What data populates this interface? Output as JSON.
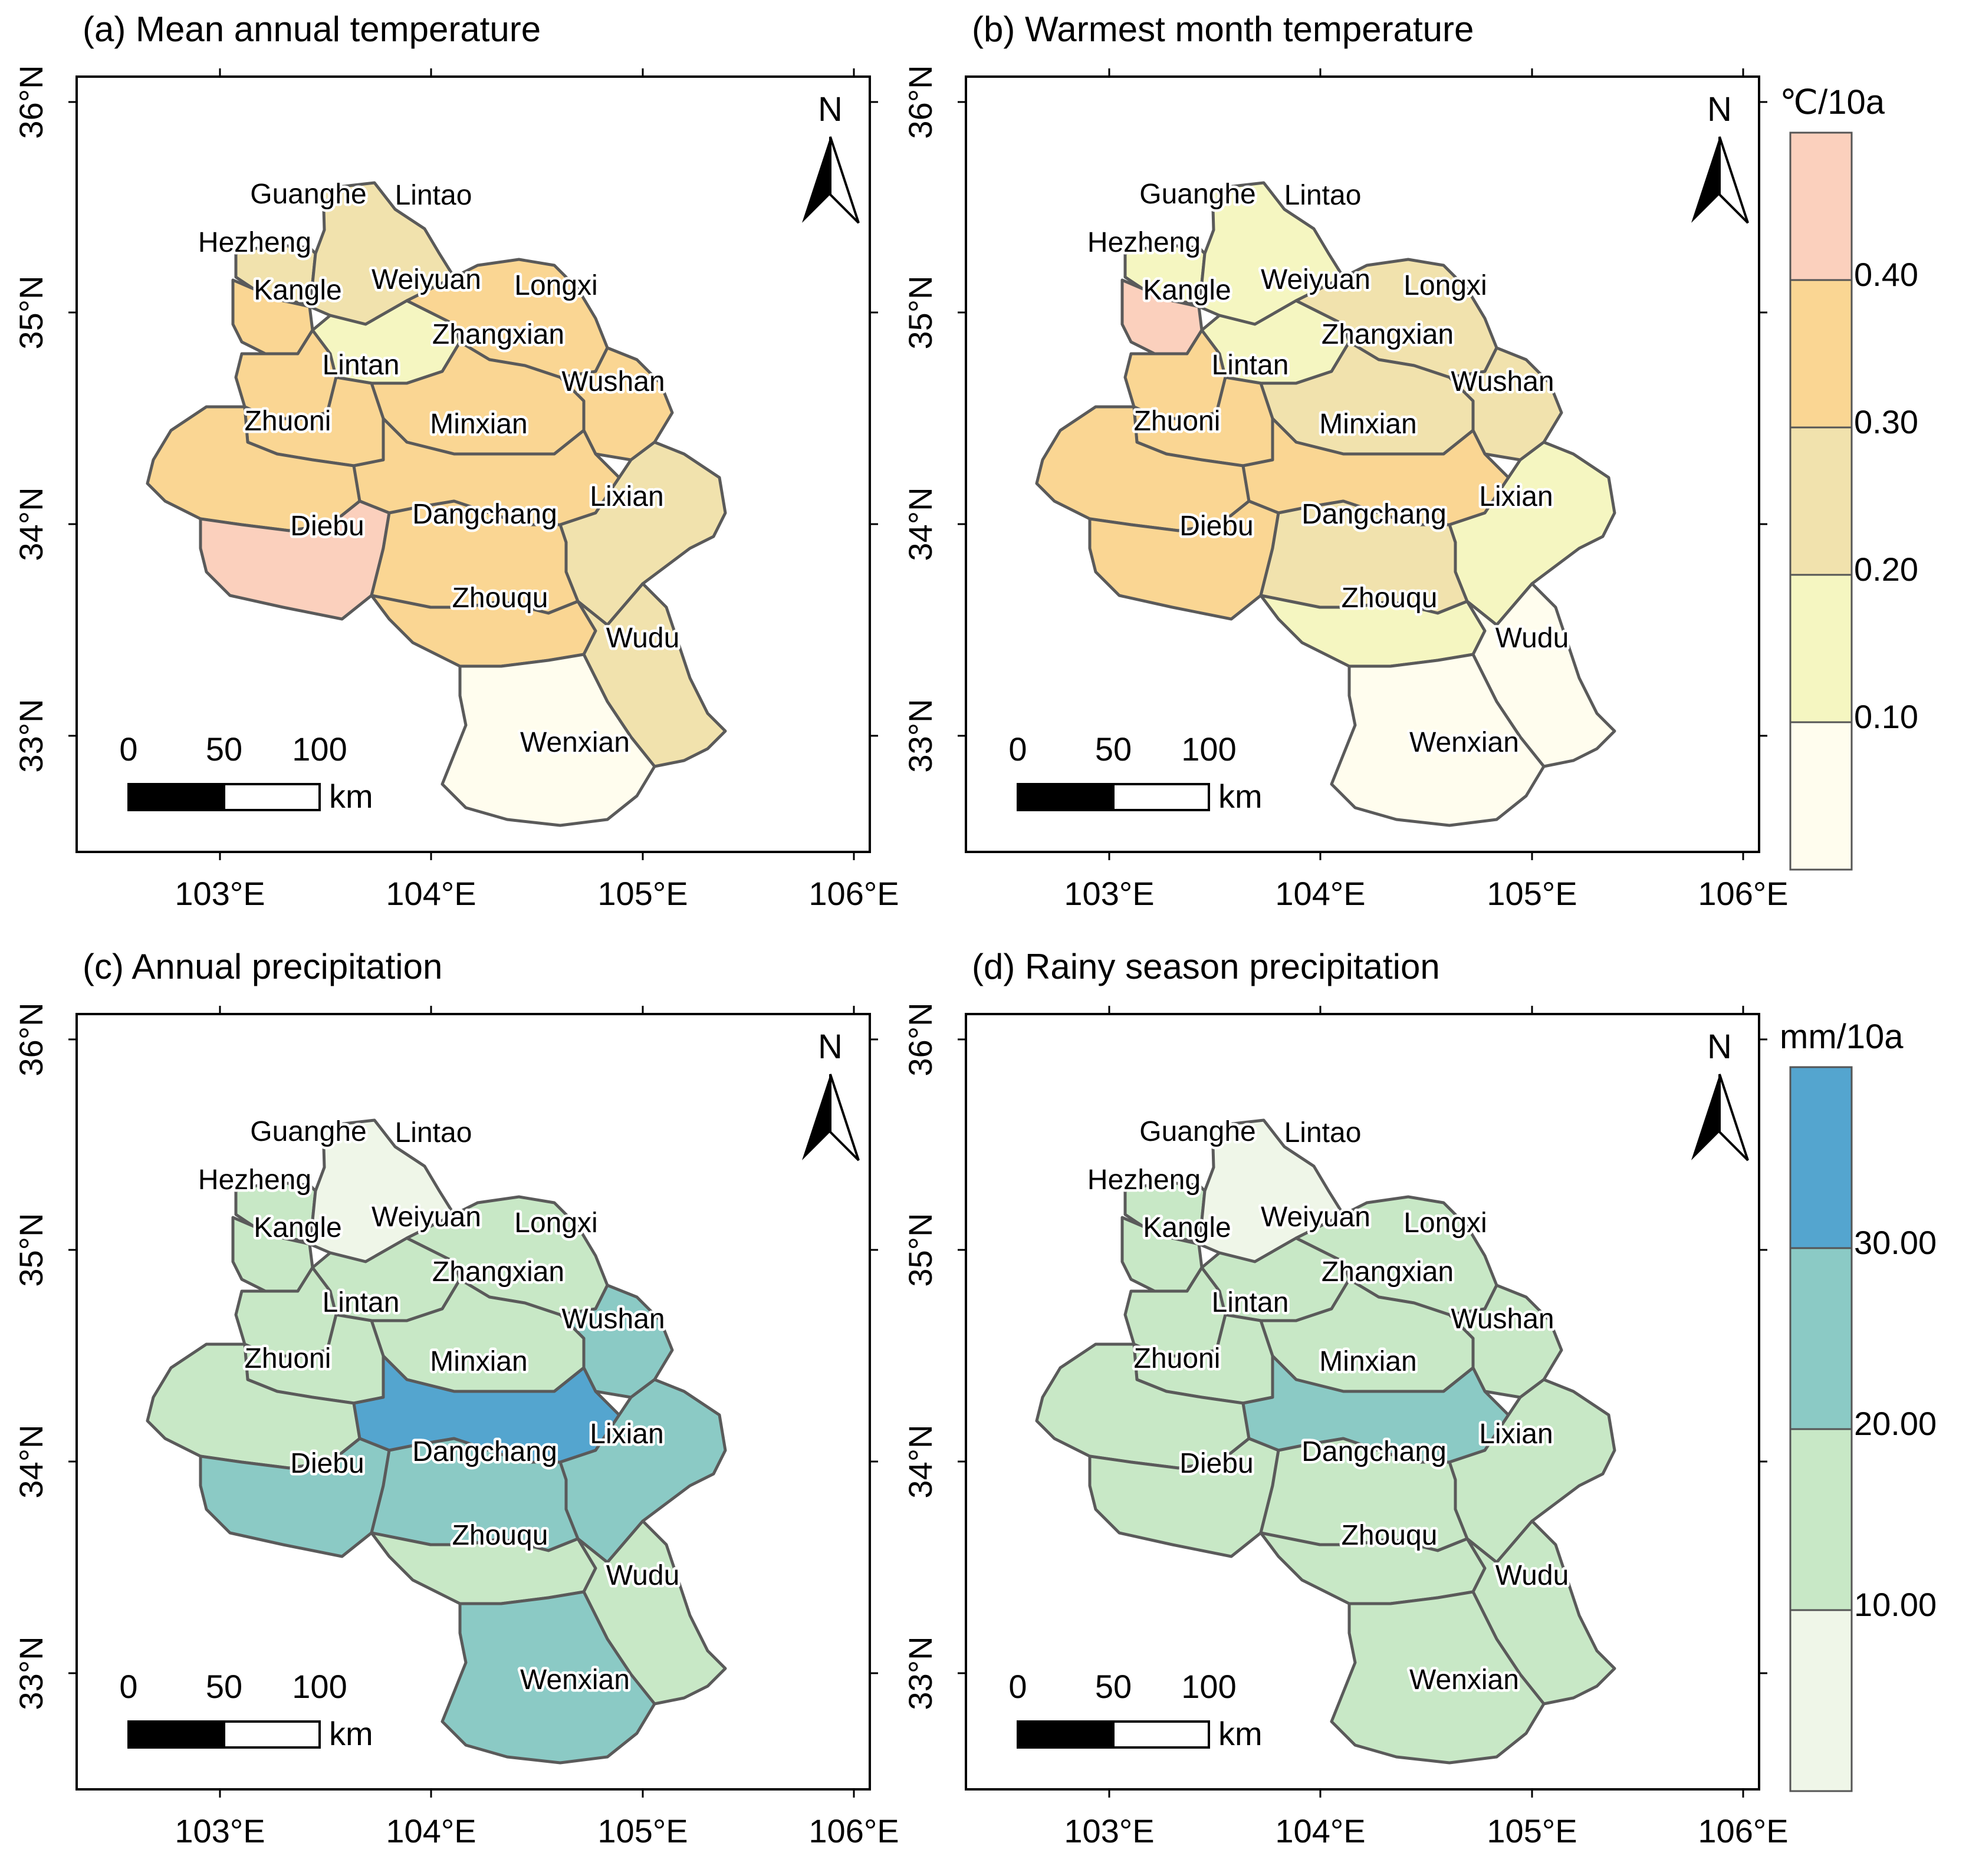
{
  "axes": {
    "lon_ticks": [
      "103°E",
      "104°E",
      "105°E",
      "106°E"
    ],
    "lat_ticks": [
      "36°N",
      "35°N",
      "34°N",
      "33°N"
    ]
  },
  "north_label": "N",
  "scale_bar": {
    "labels": [
      "0",
      "50",
      "100"
    ],
    "unit": "km"
  },
  "counties": [
    "Guanghe",
    "Lintao",
    "Hezheng",
    "Kangle",
    "Weiyuan",
    "Longxi",
    "Zhangxian",
    "Lintan",
    "Wushan",
    "Zhuoni",
    "Minxian",
    "Lixian",
    "Diebu",
    "Dangchang",
    "Zhouqu",
    "Wudu",
    "Wenxian"
  ],
  "legends": {
    "temperature": {
      "unit": "℃/10a",
      "ticks": [
        "0.40",
        "0.30",
        "0.20",
        "0.10"
      ],
      "colors": [
        "#fbd0bd",
        "#fad693",
        "#f1e2ad",
        "#f5f6c1",
        "#fffdee"
      ]
    },
    "precipitation": {
      "unit": "mm/10a",
      "ticks": [
        "30.00",
        "20.00",
        "10.00"
      ],
      "colors": [
        "#54a5cf",
        "#8bcac5",
        "#c8e8c6",
        "#eff6e8"
      ]
    }
  },
  "panels": [
    {
      "title": "(a) Mean annual temperature",
      "class_colors": {
        "Guanghe": 2,
        "Lintao": 2,
        "Hezheng": 1,
        "Kangle": 1,
        "Weiyuan": 3,
        "Longxi": 1,
        "Zhangxian": 1,
        "Lintan": 1,
        "Wushan": 1,
        "Zhuoni": 1,
        "Minxian": 1,
        "Lixian": 2,
        "Diebu": 0,
        "Dangchang": 1,
        "Zhouqu": 1,
        "Wudu": 2,
        "Wenxian": 4
      }
    },
    {
      "title": "(b) Warmest month temperature",
      "class_colors": {
        "Guanghe": 3,
        "Lintao": 3,
        "Hezheng": 0,
        "Kangle": 1,
        "Weiyuan": 3,
        "Longxi": 2,
        "Zhangxian": 2,
        "Lintan": 1,
        "Wushan": 2,
        "Zhuoni": 1,
        "Minxian": 1,
        "Lixian": 3,
        "Diebu": 1,
        "Dangchang": 2,
        "Zhouqu": 3,
        "Wudu": 4,
        "Wenxian": 4
      }
    },
    {
      "title": "(c) Annual precipitation",
      "class_colors": {
        "Guanghe": 2,
        "Lintao": 3,
        "Hezheng": 2,
        "Kangle": 2,
        "Weiyuan": 2,
        "Longxi": 2,
        "Zhangxian": 2,
        "Lintan": 2,
        "Wushan": 1,
        "Zhuoni": 2,
        "Minxian": 0,
        "Lixian": 1,
        "Diebu": 1,
        "Dangchang": 1,
        "Zhouqu": 2,
        "Wudu": 2,
        "Wenxian": 1
      }
    },
    {
      "title": "(d) Rainy season precipitation",
      "class_colors": {
        "Guanghe": 2,
        "Lintao": 3,
        "Hezheng": 2,
        "Kangle": 2,
        "Weiyuan": 2,
        "Longxi": 2,
        "Zhangxian": 2,
        "Lintan": 2,
        "Wushan": 2,
        "Zhuoni": 2,
        "Minxian": 1,
        "Lixian": 2,
        "Diebu": 2,
        "Dangchang": 2,
        "Zhouqu": 2,
        "Wudu": 2,
        "Wenxian": 2
      }
    }
  ]
}
